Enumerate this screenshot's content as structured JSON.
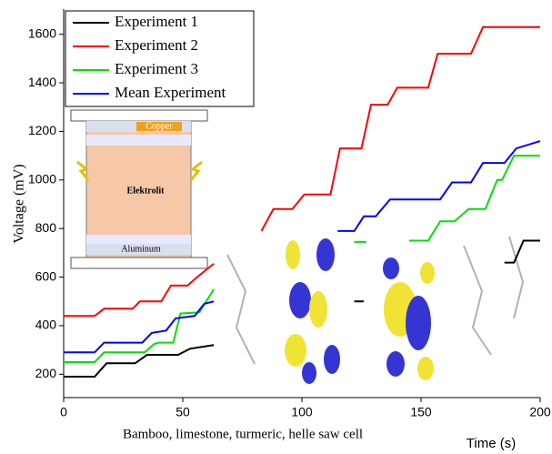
{
  "chart_data": {
    "type": "line",
    "x_label": "Time (s)",
    "y_label": "Voltage (mV)",
    "xlim": [
      0,
      200
    ],
    "xticks": [
      0,
      50,
      100,
      150,
      200
    ],
    "ylim": [
      100,
      1700
    ],
    "yticks": [
      200,
      400,
      600,
      800,
      1000,
      1200,
      1400,
      1600
    ],
    "legend": "upper left",
    "annotations": [
      "Copper",
      "Elektrolit",
      "Aluminum",
      "Bamboo, limestone, turmeric, helle saw cell"
    ],
    "series": [
      {
        "name": "Experiment 1",
        "color": "#000000",
        "x": [
          0,
          13,
          18,
          30,
          35,
          48,
          53,
          63,
          64,
          122,
          126,
          127,
          185,
          189,
          193,
          200
        ],
        "values": [
          190,
          190,
          245,
          245,
          280,
          280,
          305,
          320,
          null,
          500,
          500,
          null,
          660,
          660,
          750,
          750
        ]
      },
      {
        "name": "Experiment 2",
        "color": "#ff0000",
        "x": [
          0,
          13,
          17,
          29,
          32,
          41,
          45,
          52,
          56,
          63,
          70,
          83,
          88,
          96,
          101,
          112,
          116,
          125,
          129,
          136,
          140,
          153,
          157,
          171,
          176,
          200
        ],
        "values": [
          440,
          440,
          470,
          470,
          500,
          500,
          565,
          565,
          600,
          655,
          null,
          790,
          880,
          880,
          940,
          940,
          1130,
          1130,
          1310,
          1310,
          1380,
          1380,
          1520,
          1520,
          1630,
          1630
        ]
      },
      {
        "name": "Experiment 3",
        "color": "#00e000",
        "x": [
          0,
          13,
          17,
          34,
          38,
          40,
          46,
          49,
          57,
          63,
          64,
          122,
          127,
          130,
          145,
          153,
          158,
          164,
          170,
          177,
          182,
          184,
          189,
          200
        ],
        "values": [
          250,
          250,
          290,
          290,
          325,
          330,
          330,
          450,
          455,
          550,
          null,
          745,
          745,
          null,
          750,
          750,
          830,
          830,
          880,
          880,
          1000,
          1000,
          1100,
          1100
        ]
      },
      {
        "name": "Mean Experiment",
        "color": "#0000ff",
        "x": [
          0,
          13,
          17,
          33,
          37,
          43,
          47,
          55,
          59,
          63,
          64,
          115,
          122,
          126,
          131,
          137,
          158,
          163,
          171,
          176,
          185,
          190,
          200
        ],
        "values": [
          290,
          290,
          330,
          330,
          370,
          380,
          430,
          440,
          490,
          500,
          null,
          790,
          790,
          850,
          850,
          920,
          920,
          990,
          990,
          1070,
          1070,
          1130,
          1160
        ]
      }
    ]
  }
}
